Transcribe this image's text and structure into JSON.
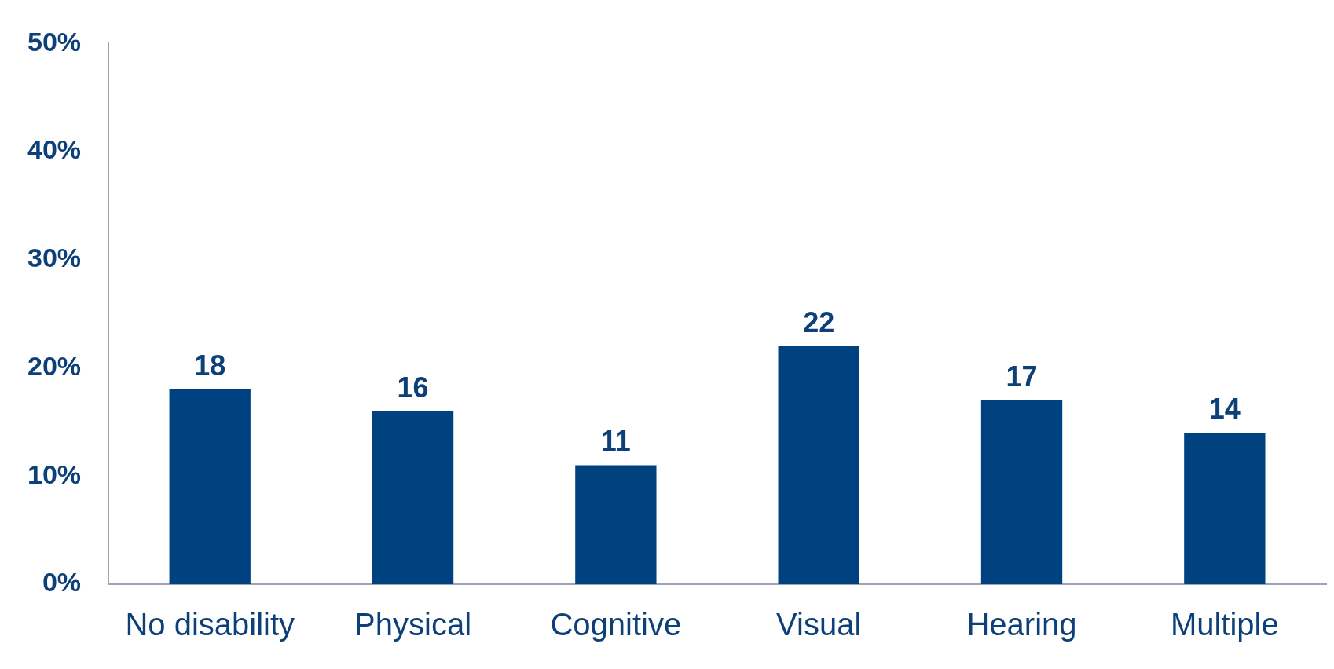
{
  "chart_data": {
    "type": "bar",
    "categories": [
      "No disability",
      "Physical",
      "Cognitive",
      "Visual",
      "Hearing",
      "Multiple"
    ],
    "values": [
      18,
      16,
      11,
      22,
      17,
      14
    ],
    "color": "#00427f",
    "ylim": [
      0,
      50
    ],
    "yticks": [
      {
        "value": 0,
        "label": "0%"
      },
      {
        "value": 10,
        "label": "10%"
      },
      {
        "value": 20,
        "label": "20%"
      },
      {
        "value": 30,
        "label": "30%"
      },
      {
        "value": 40,
        "label": "40%"
      },
      {
        "value": 50,
        "label": "50%"
      }
    ],
    "data_labels": true,
    "grid": false,
    "legend": false
  }
}
